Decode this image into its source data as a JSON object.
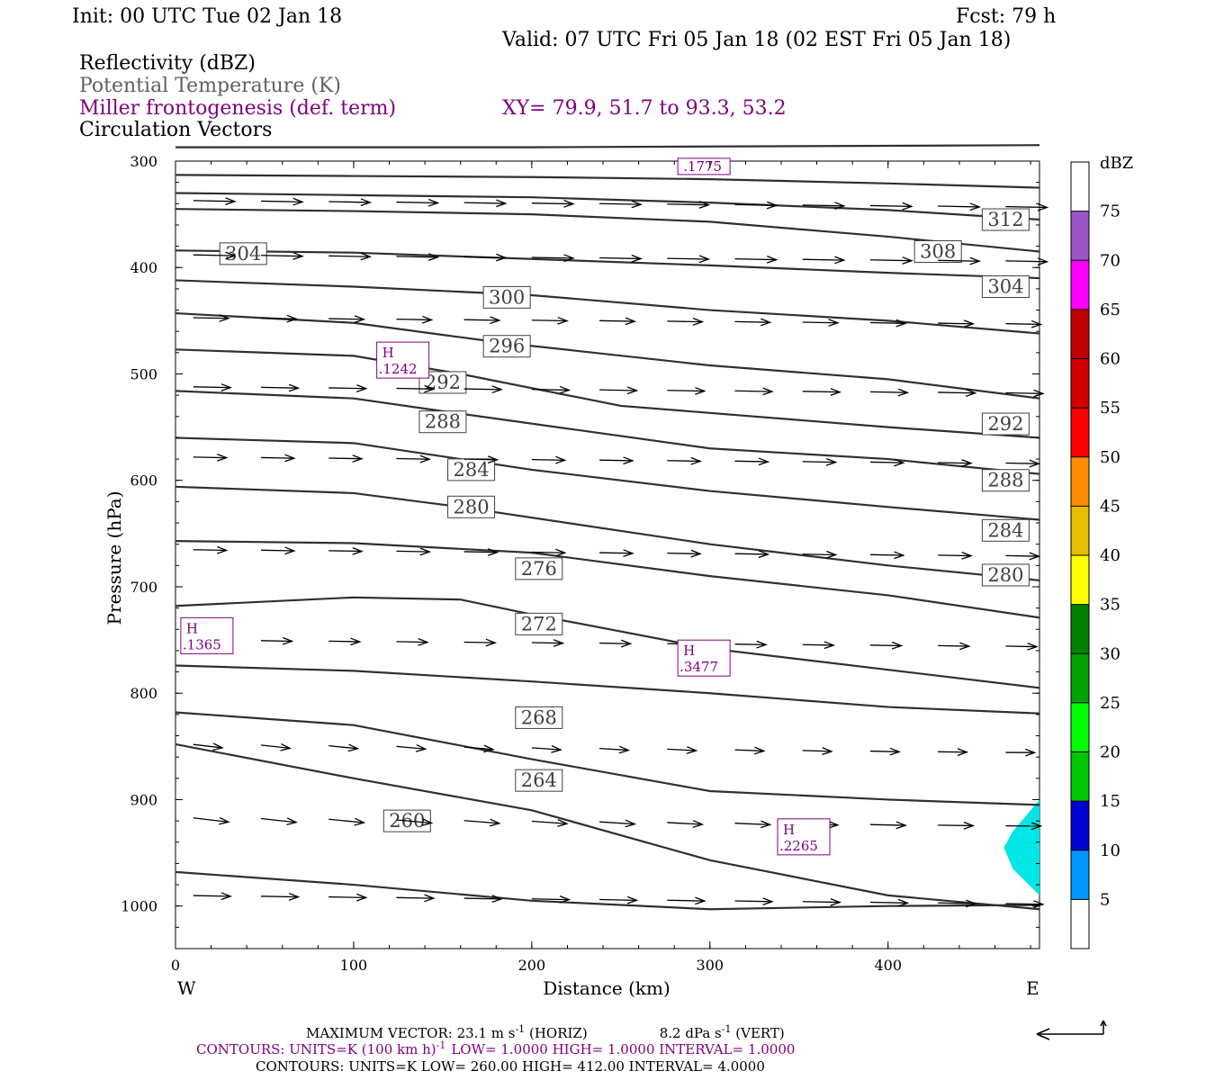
{
  "header": {
    "init": "Init: 00 UTC Tue 02 Jan 18",
    "fcst": "Fcst:   79 h",
    "valid": "Valid: 07 UTC Fri 05 Jan 18 (02 EST Fri 05 Jan 18)",
    "fields": [
      {
        "text": "Reflectivity (dBZ)",
        "color": "#000000"
      },
      {
        "text": "Potential Temperature (K)",
        "color": "#606060"
      },
      {
        "text": "Miller frontogenesis (def. term)",
        "color": "#800080"
      },
      {
        "text": "Circulation Vectors",
        "color": "#000000"
      }
    ],
    "xy": "XY=  79.9, 51.7 to  93.3, 53.2"
  },
  "chart_data": {
    "type": "cross-section",
    "xlabel": "Distance (km)",
    "ylabel": "Pressure (hPa)",
    "xlim": [
      0,
      485
    ],
    "ylim": [
      1040,
      300
    ],
    "y_scale": "linear-inverted",
    "x_ticks": [
      0,
      100,
      200,
      300,
      400
    ],
    "y_ticks": [
      300,
      400,
      500,
      600,
      700,
      800,
      900,
      1000
    ],
    "x_end_labels": {
      "left": "W",
      "right": "E"
    },
    "theta_contours": [
      {
        "label": "304",
        "points": [
          [
            0,
            384
          ],
          [
            100,
            386
          ],
          [
            200,
            392
          ],
          [
            300,
            398
          ],
          [
            400,
            405
          ],
          [
            485,
            410
          ]
        ],
        "labels": [
          [
            38,
            387
          ]
        ]
      },
      {
        "label": "308",
        "points": [
          [
            0,
            345
          ],
          [
            100,
            347
          ],
          [
            200,
            350
          ],
          [
            300,
            357
          ],
          [
            400,
            371
          ],
          [
            485,
            385
          ]
        ],
        "labels": [
          [
            428,
            385
          ]
        ]
      },
      {
        "label": "312",
        "points": [
          [
            0,
            330
          ],
          [
            100,
            332
          ],
          [
            200,
            334
          ],
          [
            300,
            339
          ],
          [
            400,
            346
          ],
          [
            485,
            355
          ]
        ],
        "labels": [
          [
            466,
            355
          ]
        ]
      },
      {
        "label": "",
        "points": [
          [
            0,
            313
          ],
          [
            100,
            314
          ],
          [
            200,
            315
          ],
          [
            300,
            317
          ],
          [
            400,
            321
          ],
          [
            485,
            325
          ]
        ],
        "labels": []
      },
      {
        "label": "",
        "points": [
          [
            0,
            287
          ],
          [
            200,
            287
          ],
          [
            485,
            285
          ]
        ],
        "labels": []
      },
      {
        "label": "304",
        "points": [
          [
            0,
            412
          ],
          [
            100,
            418
          ],
          [
            200,
            426
          ],
          [
            300,
            440
          ],
          [
            400,
            450
          ],
          [
            485,
            462
          ]
        ],
        "labels": [
          [
            466,
            418
          ]
        ]
      },
      {
        "label": "300",
        "points": [
          [
            0,
            443
          ],
          [
            100,
            452
          ],
          [
            180,
            470
          ],
          [
            300,
            492
          ],
          [
            400,
            505
          ],
          [
            485,
            523
          ]
        ],
        "labels": [
          [
            186,
            428
          ]
        ]
      },
      {
        "label": "296",
        "points": [
          [
            0,
            477
          ],
          [
            100,
            483
          ],
          [
            160,
            500
          ],
          [
            250,
            530
          ],
          [
            400,
            550
          ],
          [
            485,
            560
          ]
        ],
        "labels": [
          [
            186,
            474
          ]
        ]
      },
      {
        "label": "292",
        "points": [
          [
            0,
            516
          ],
          [
            100,
            523
          ],
          [
            150,
            535
          ],
          [
            300,
            570
          ],
          [
            400,
            580
          ],
          [
            485,
            594
          ]
        ],
        "labels": [
          [
            150,
            508
          ],
          [
            466,
            547
          ]
        ]
      },
      {
        "label": "288",
        "points": [
          [
            0,
            560
          ],
          [
            100,
            565
          ],
          [
            200,
            590
          ],
          [
            300,
            610
          ],
          [
            400,
            625
          ],
          [
            485,
            637
          ]
        ],
        "labels": [
          [
            150,
            545
          ],
          [
            466,
            600
          ]
        ]
      },
      {
        "label": "284",
        "points": [
          [
            0,
            606
          ],
          [
            100,
            612
          ],
          [
            160,
            625
          ],
          [
            300,
            660
          ],
          [
            400,
            680
          ],
          [
            485,
            694
          ]
        ],
        "labels": [
          [
            166,
            590
          ],
          [
            466,
            647
          ]
        ]
      },
      {
        "label": "280",
        "points": [
          [
            0,
            657
          ],
          [
            100,
            659
          ],
          [
            200,
            668
          ],
          [
            300,
            690
          ],
          [
            400,
            708
          ],
          [
            485,
            729
          ]
        ],
        "labels": [
          [
            166,
            625
          ],
          [
            466,
            689
          ]
        ]
      },
      {
        "label": "276",
        "points": [
          [
            0,
            718
          ],
          [
            100,
            710
          ],
          [
            160,
            712
          ],
          [
            200,
            726
          ],
          [
            300,
            758
          ],
          [
            485,
            795
          ]
        ],
        "labels": [
          [
            204,
            683
          ]
        ]
      },
      {
        "label": "272",
        "points": [
          [
            0,
            774
          ],
          [
            100,
            779
          ],
          [
            200,
            789
          ],
          [
            300,
            800
          ],
          [
            400,
            813
          ],
          [
            485,
            819
          ]
        ],
        "labels": [
          [
            204,
            735
          ]
        ]
      },
      {
        "label": "268",
        "points": [
          [
            0,
            818
          ],
          [
            100,
            830
          ],
          [
            200,
            862
          ],
          [
            300,
            892
          ],
          [
            400,
            900
          ],
          [
            485,
            905
          ]
        ],
        "labels": [
          [
            204,
            823
          ]
        ]
      },
      {
        "label": "264",
        "points": [
          [
            0,
            848
          ],
          [
            100,
            880
          ],
          [
            200,
            910
          ],
          [
            300,
            957
          ],
          [
            400,
            990
          ],
          [
            485,
            1003
          ]
        ],
        "labels": [
          [
            204,
            882
          ]
        ]
      },
      {
        "label": "260",
        "points": [
          [
            0,
            968
          ],
          [
            100,
            980
          ],
          [
            200,
            995
          ],
          [
            300,
            1003
          ],
          [
            400,
            1000
          ],
          [
            485,
            999
          ]
        ],
        "labels": [
          [
            130,
            920
          ]
        ]
      }
    ],
    "frontogenesis_maxima": [
      {
        "label": "H",
        "value": ".1242",
        "x": 115,
        "p": 487
      },
      {
        "label": "H",
        "value": ".1365",
        "x": 5,
        "p": 746
      },
      {
        "label": "H",
        "value": ".3477",
        "x": 284,
        "p": 767
      },
      {
        "label": "H",
        "value": ".2265",
        "x": 340,
        "p": 935
      },
      {
        "label": "",
        "value": ".1775",
        "x": 284,
        "p": 305
      }
    ],
    "reflectivity": {
      "colorbar_levels": [
        5,
        10,
        15,
        20,
        25,
        30,
        35,
        40,
        45,
        50,
        55,
        60,
        65,
        70,
        75
      ],
      "colorbar_colors": [
        "#00e5e5",
        "#0096ff",
        "#0000d4",
        "#00c800",
        "#00ff00",
        "#00a000",
        "#008000",
        "#ffff00",
        "#e6be00",
        "#ff8c00",
        "#ff0000",
        "#d40000",
        "#c00000",
        "#ff00ff",
        "#9955c8",
        "#ffffff"
      ],
      "colorbar_unit": "dBZ",
      "regions": [
        {
          "level": 5,
          "points": [
            [
              485,
              900
            ],
            [
              470,
              930
            ],
            [
              465,
              945
            ],
            [
              470,
              965
            ],
            [
              485,
              990
            ]
          ]
        }
      ]
    },
    "vectors": [
      {
        "x": 0,
        "p": 330,
        "u": 30,
        "w": 0
      },
      {
        "x": 100,
        "p": 338,
        "u": 32,
        "w": 0
      }
    ]
  },
  "footer": {
    "max_vector": "MAXIMUM VECTOR:  23.1 m s",
    "max_vector_horiz": "(HORIZ)",
    "max_vector_vert_val": "8.2 dPa s",
    "max_vector_vert": "(VERT)",
    "contours_1": "CONTOURS:  UNITS=K (100 km h)",
    "contours_1_rest": "LOW=   1.0000        HIGH=   1.0000        INTERVAL=    1.0000",
    "contours_2": "CONTOURS:  UNITS=K   LOW=   260.00          HIGH=   412.00          INTERVAL=     4.0000",
    "exponent": "-1"
  }
}
